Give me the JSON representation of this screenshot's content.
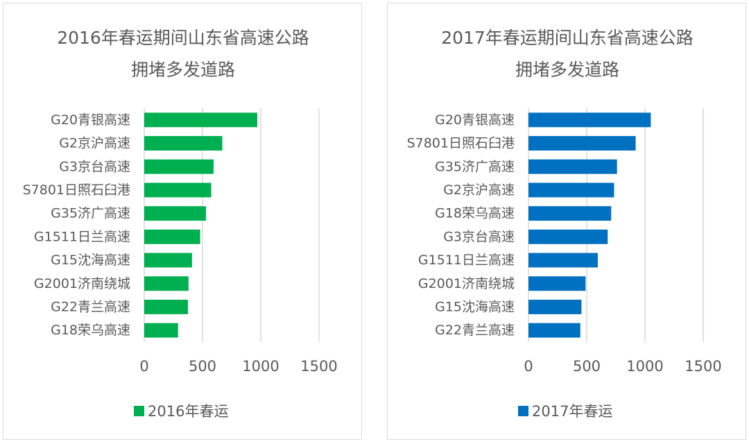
{
  "chart_data": [
    {
      "type": "bar",
      "orientation": "horizontal",
      "title": [
        "2016年春运期间山东省高速公路",
        "拥堵多发道路"
      ],
      "categories": [
        "G20青银高速",
        "G2京沪高速",
        "G3京台高速",
        "S7801日照石臼港",
        "G35济广高速",
        "G1511日兰高速",
        "G15沈海高速",
        "G2001济南绕城",
        "G22青兰高速",
        "G18荣乌高速"
      ],
      "series": [
        {
          "name": "2016年春运",
          "color": "#00b050",
          "values": [
            970,
            670,
            595,
            575,
            530,
            480,
            410,
            380,
            375,
            290
          ]
        }
      ],
      "xlim": [
        0,
        1500
      ],
      "xticks": [
        "0",
        "500",
        "1000",
        "1500"
      ],
      "grid": true,
      "legend": "bottom"
    },
    {
      "type": "bar",
      "orientation": "horizontal",
      "title": [
        "2017年春运期间山东省高速公路",
        "拥堵多发道路"
      ],
      "categories": [
        "G20青银高速",
        "S7801日照石臼港",
        "G35济广高速",
        "G2京沪高速",
        "G18荣乌高速",
        "G3京台高速",
        "G1511日兰高速",
        "G2001济南绕城",
        "G15沈海高速",
        "G22青兰高速"
      ],
      "series": [
        {
          "name": "2017年春运",
          "color": "#0070c0",
          "values": [
            1050,
            920,
            760,
            735,
            710,
            680,
            595,
            490,
            455,
            445
          ]
        }
      ],
      "xlim": [
        0,
        1500
      ],
      "xticks": [
        "0",
        "500",
        "1000",
        "1500"
      ],
      "grid": true,
      "legend": "bottom"
    }
  ]
}
